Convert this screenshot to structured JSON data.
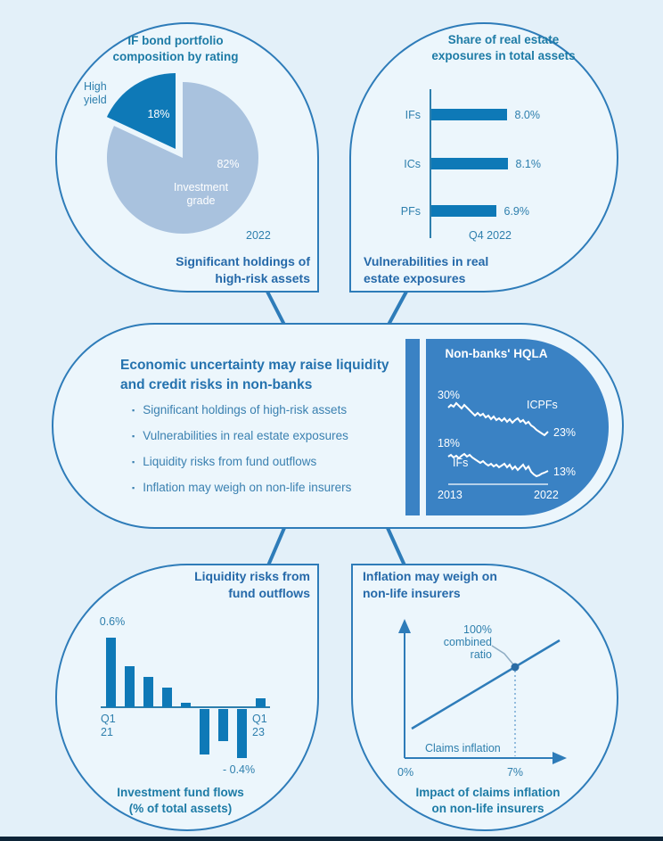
{
  "colors": {
    "accent": "#2e7cb9",
    "dark_blue": "#0e79b7",
    "panel_blue": "#3a82c4",
    "light_slice": "#a9c2de",
    "teal_text": "#2e7fad",
    "title_teal": "#1d7ba6",
    "caption_blue": "#2569a9",
    "heading_blue": "#2472ae",
    "bullet_text": "#3a80b0",
    "background": "#e3f0f9",
    "bubble_fill": "#ecf6fc",
    "footer_bar": "#0d2438"
  },
  "bubbles": {
    "top_left": {
      "chart_title": "IF bond portfolio\ncomposition by rating",
      "high_yield_label": "High\nyield",
      "high_yield_value": "18%",
      "investment_grade_value": "82%",
      "investment_grade_label": "Investment\ngrade",
      "year": "2022",
      "caption": "Significant holdings of\nhigh-risk assets"
    },
    "top_right": {
      "chart_title": "Share of real estate\nexposures in total assets",
      "rows": [
        {
          "label": "IFs",
          "value": "8.0%"
        },
        {
          "label": "ICs",
          "value": "8.1%"
        },
        {
          "label": "PFs",
          "value": "6.9%"
        }
      ],
      "period": "Q4 2022",
      "caption": "Vulnerabilities in real\nestate exposures"
    },
    "center": {
      "heading": "Economic uncertainty may raise liquidity\nand credit risks in non-banks",
      "bullets": [
        "Significant holdings of high-risk assets",
        "Vulnerabilities in real estate exposures",
        "Liquidity risks from fund outflows",
        "Inflation may weigh on non-life insurers"
      ],
      "hqla": {
        "title": "Non-banks' HQLA",
        "icpfs_start": "30%",
        "icpfs_label": "ICPFs",
        "icpfs_end": "23%",
        "ifs_start": "18%",
        "ifs_label": "IFs",
        "ifs_end": "13%",
        "x_start": "2013",
        "x_end": "2022"
      }
    },
    "bottom_left": {
      "title": "Liquidity risks from\nfund outflows",
      "max_label": "0.6%",
      "min_label": "- 0.4%",
      "x_start": "Q1\n21",
      "x_end": "Q1\n23",
      "caption": "Investment fund flows\n(% of total assets)"
    },
    "bottom_right": {
      "title": "Inflation may weigh on\nnon-life insurers",
      "point_label": "100%\ncombined\nratio",
      "x_axis_label": "Claims inflation",
      "x_origin": "0%",
      "x_tick": "7%",
      "caption": "Impact of claims inflation\non non-life insurers"
    }
  },
  "chart_data": [
    {
      "id": "bond_portfolio_pie",
      "type": "pie",
      "title": "IF bond portfolio composition by rating",
      "period": "2022",
      "slices": [
        {
          "label": "High yield",
          "value": 18,
          "color": "#0e79b7"
        },
        {
          "label": "Investment grade",
          "value": 82,
          "color": "#a9c2de"
        }
      ]
    },
    {
      "id": "real_estate_exposures",
      "type": "bar",
      "orientation": "horizontal",
      "title": "Share of real estate exposures in total assets",
      "period": "Q4 2022",
      "categories": [
        "IFs",
        "ICs",
        "PFs"
      ],
      "values": [
        8.0,
        8.1,
        6.9
      ],
      "value_labels": [
        "8.0%",
        "8.1%",
        "6.9%"
      ],
      "unit": "%"
    },
    {
      "id": "non_banks_hqla",
      "type": "line",
      "title": "Non-banks' HQLA",
      "x_range": [
        "2013",
        "2022"
      ],
      "series": [
        {
          "name": "ICPFs",
          "start": 30,
          "end": 23,
          "start_label": "30%",
          "end_label": "23%"
        },
        {
          "name": "IFs",
          "start": 18,
          "end": 13,
          "start_label": "18%",
          "end_label": "13%"
        }
      ],
      "unit": "%"
    },
    {
      "id": "investment_fund_flows",
      "type": "bar",
      "title": "Investment fund flows (% of total assets)",
      "x_start_label": "Q1 21",
      "x_end_label": "Q1 23",
      "values": [
        0.6,
        0.35,
        0.26,
        0.17,
        0.04,
        -0.39,
        -0.28,
        -0.42,
        0.08
      ],
      "annotations": {
        "max": "0.6%",
        "min": "-0.4%"
      },
      "unit": "%"
    },
    {
      "id": "claims_inflation_schematic",
      "type": "line",
      "schematic": true,
      "title": "Impact of claims inflation on non-life insurers",
      "x_axis_label": "Claims inflation",
      "x_ticks": [
        "0%",
        "7%"
      ],
      "point_label": "100% combined ratio"
    }
  ]
}
